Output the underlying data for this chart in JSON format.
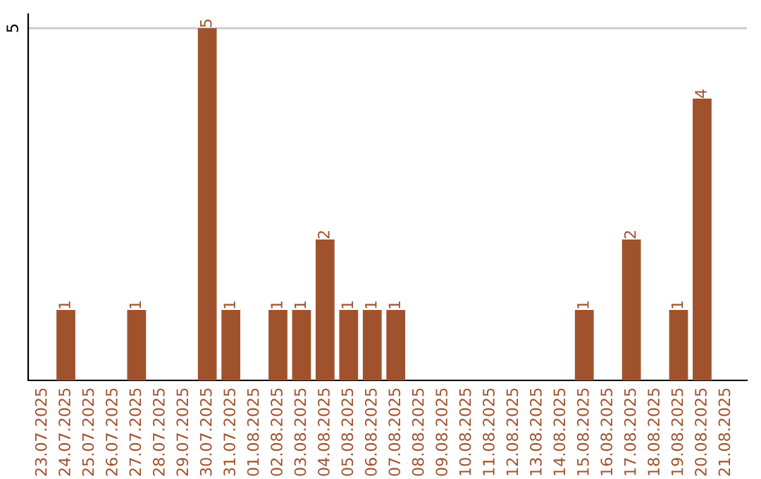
{
  "chart_data": {
    "type": "bar",
    "categories": [
      "23.07.2025",
      "24.07.2025",
      "25.07.2025",
      "26.07.2025",
      "27.07.2025",
      "28.07.2025",
      "29.07.2025",
      "30.07.2025",
      "31.07.2025",
      "01.08.2025",
      "02.08.2025",
      "03.08.2025",
      "04.08.2025",
      "05.08.2025",
      "06.08.2025",
      "07.08.2025",
      "08.08.2025",
      "09.08.2025",
      "10.08.2025",
      "11.08.2025",
      "12.08.2025",
      "13.08.2025",
      "14.08.2025",
      "15.08.2025",
      "16.08.2025",
      "17.08.2025",
      "18.08.2025",
      "19.08.2025",
      "20.08.2025",
      "21.08.2025"
    ],
    "values": [
      0,
      1,
      0,
      0,
      1,
      0,
      0,
      5,
      1,
      0,
      1,
      1,
      2,
      1,
      1,
      1,
      0,
      0,
      0,
      0,
      0,
      0,
      0,
      1,
      0,
      2,
      0,
      1,
      4,
      0
    ],
    "value_labels": [
      null,
      "1",
      null,
      null,
      "1",
      null,
      null,
      "5",
      "1",
      null,
      "1",
      "1",
      "2",
      "1",
      "1",
      "1",
      null,
      null,
      null,
      null,
      null,
      null,
      null,
      "1",
      null,
      "2",
      null,
      "1",
      "4",
      null
    ],
    "color": "#a0522d",
    "ylim": [
      0,
      5.2
    ],
    "yticks": [
      5
    ],
    "grid": "y"
  }
}
